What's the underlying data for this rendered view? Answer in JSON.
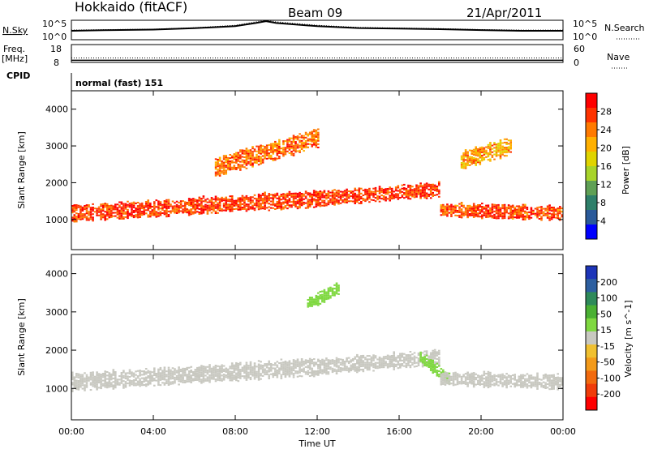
{
  "header": {
    "station": "Hokkaido (fitACF)",
    "beam": "Beam 09",
    "date": "21/Apr/2011"
  },
  "strips": {
    "nsky_label": "N.Sky",
    "nsky_top": "10^5",
    "nsky_bottom": "10^0",
    "nsearch_label": "N.Search",
    "nsearch_top": "10^5",
    "nsearch_bottom": "10^0",
    "freq_label": "Freq.",
    "freq_unit": "[MHz]",
    "freq_top": "18",
    "freq_bottom": "8",
    "nave_label": "Nave",
    "nave_top": "60",
    "nave_bottom": "0",
    "cpid_label": "CPID",
    "cpid_text": "normal (fast) 151"
  },
  "colorbars": {
    "power": {
      "label": "Power [dB]",
      "ticks": [
        "28",
        "24",
        "20",
        "16",
        "12",
        "8",
        "4"
      ],
      "colors": [
        "#ff0000",
        "#ff3300",
        "#ff7a00",
        "#ffb000",
        "#e0d400",
        "#a8d42a",
        "#5fa055",
        "#2e7f6a",
        "#2a5a9a",
        "#0000ff"
      ]
    },
    "velocity": {
      "label": "Velocity [m s^-1]",
      "ticks": [
        "200",
        "100",
        "50",
        "15",
        "-15",
        "-50",
        "-100",
        "-200"
      ],
      "colors": [
        "#1d35b8",
        "#2d5fa0",
        "#2e8a5a",
        "#4ab033",
        "#7fd840",
        "#c8c8c0",
        "#f0c030",
        "#f39a1a",
        "#f26a0e",
        "#f03c0a",
        "#ff0000"
      ]
    }
  },
  "axes": {
    "xlabel": "Time UT",
    "ylabel": "Slant Range [km]",
    "xticks": [
      "00:00",
      "04:00",
      "08:00",
      "12:00",
      "16:00",
      "20:00",
      "00:00"
    ],
    "yticks": [
      "1000",
      "2000",
      "3000",
      "4000"
    ]
  },
  "chart_data": [
    {
      "type": "line",
      "title": "N.Sky / N.Search",
      "x": [
        0,
        2,
        4,
        6,
        8,
        9,
        9.5,
        10,
        12,
        14,
        16,
        18,
        20,
        22,
        24
      ],
      "series": [
        {
          "name": "N.Sky",
          "values": [
            200,
            300,
            400,
            900,
            3000,
            20000,
            60000,
            20000,
            3000,
            1000,
            700,
            500,
            300,
            200,
            200
          ]
        },
        {
          "name": "N.Search",
          "values": [
            300,
            400,
            500,
            1200,
            5000,
            40000,
            100000,
            40000,
            5000,
            1500,
            1000,
            700,
            400,
            300,
            300
          ]
        }
      ],
      "ylim": [
        "10^0",
        "10^5"
      ],
      "xlim": [
        "00:00",
        "24:00"
      ]
    },
    {
      "type": "line",
      "title": "Freq. / Nave",
      "x": [
        0,
        6,
        12,
        18,
        24
      ],
      "series": [
        {
          "name": "Freq.",
          "values": [
            9.2,
            9.2,
            9.2,
            9.2,
            9.2
          ]
        },
        {
          "name": "Nave",
          "values": [
            15,
            15,
            15,
            15,
            15
          ]
        }
      ],
      "ylim": [
        8,
        18
      ],
      "xlim": [
        "00:00",
        "24:00"
      ]
    },
    {
      "type": "heatmap",
      "title": "Power",
      "xlabel": "Time UT",
      "ylabel": "Slant Range [km]",
      "xlim": [
        "00:00",
        "24:00"
      ],
      "ylim": [
        180,
        4500
      ],
      "colorbar": {
        "label": "Power [dB]",
        "range": [
          0,
          30
        ]
      },
      "bands": [
        {
          "time": [
            0,
            12
          ],
          "range_center_start": 1150,
          "range_center_end": 1550,
          "width": 420,
          "value_db": 27
        },
        {
          "time": [
            12,
            18
          ],
          "range_center_start": 1550,
          "range_center_end": 1800,
          "width": 380,
          "value_db": 27
        },
        {
          "time": [
            18,
            24
          ],
          "range_center_start": 1250,
          "range_center_end": 1150,
          "width": 350,
          "value_db": 26
        },
        {
          "time": [
            7,
            12
          ],
          "range_center_start": 2400,
          "range_center_end": 3200,
          "width": 500,
          "value_db": 24
        },
        {
          "time": [
            19,
            21.5
          ],
          "range_center_start": 2600,
          "range_center_end": 3000,
          "width": 450,
          "value_db": 21
        }
      ]
    },
    {
      "type": "heatmap",
      "title": "Velocity",
      "xlabel": "Time UT",
      "ylabel": "Slant Range [km]",
      "xlim": [
        "00:00",
        "24:00"
      ],
      "ylim": [
        180,
        4500
      ],
      "colorbar": {
        "label": "Velocity [m s^-1]",
        "range": [
          -200,
          200
        ]
      },
      "bands": [
        {
          "time": [
            0,
            12
          ],
          "range_center_start": 1150,
          "range_center_end": 1550,
          "width": 420,
          "value_ms": 0
        },
        {
          "time": [
            12,
            18
          ],
          "range_center_start": 1550,
          "range_center_end": 1800,
          "width": 380,
          "value_ms": 0
        },
        {
          "time": [
            17,
            18.5
          ],
          "range_center_start": 1800,
          "range_center_end": 1200,
          "width": 300,
          "value_ms": 40
        },
        {
          "time": [
            18,
            24
          ],
          "range_center_start": 1250,
          "range_center_end": 1150,
          "width": 350,
          "value_ms": 0
        },
        {
          "time": [
            11.5,
            13
          ],
          "range_center_start": 3200,
          "range_center_end": 3600,
          "width": 300,
          "value_ms": 50
        }
      ]
    }
  ]
}
